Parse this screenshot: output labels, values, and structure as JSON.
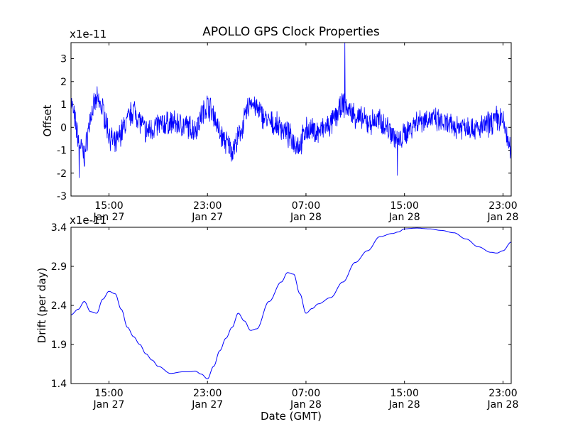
{
  "chart_data": [
    {
      "type": "line",
      "title": "APOLLO GPS Clock Properties",
      "offset_text": "x1e-11",
      "xlabel": "",
      "ylabel": "Offset",
      "ylim": [
        -3,
        3.7
      ],
      "yticks": [
        -3,
        -2,
        -1,
        0,
        1,
        2,
        3
      ],
      "ytick_labels": [
        "-3",
        "-2",
        "-1",
        "0",
        "1",
        "2",
        "3"
      ],
      "xlim": [
        "2013-01-27T11:55",
        "2013-01-28T23:40"
      ],
      "xticks": [
        {
          "time": "2013-01-27T15:00",
          "line1": "15:00",
          "line2": "Jan 27"
        },
        {
          "time": "2013-01-27T23:00",
          "line1": "23:00",
          "line2": "Jan 27"
        },
        {
          "time": "2013-01-28T07:00",
          "line1": "07:00",
          "line2": "Jan 28"
        },
        {
          "time": "2013-01-28T15:00",
          "line1": "15:00",
          "line2": "Jan 28"
        },
        {
          "time": "2013-01-28T23:00",
          "line1": "23:00",
          "line2": "Jan 28"
        }
      ],
      "grid": false,
      "line_color": "#0000ff",
      "series": [
        {
          "x": [
            "2013-01-27T11:55",
            "2013-01-27T12:30",
            "2013-01-27T13:00",
            "2013-01-27T13:30",
            "2013-01-27T14:00",
            "2013-01-27T14:30",
            "2013-01-27T15:00",
            "2013-01-27T15:30",
            "2013-01-27T16:00",
            "2013-01-27T16:30",
            "2013-01-27T17:00",
            "2013-01-27T17:30",
            "2013-01-27T18:00",
            "2013-01-27T19:00",
            "2013-01-27T20:00",
            "2013-01-27T21:00",
            "2013-01-27T22:00",
            "2013-01-27T22:30",
            "2013-01-27T23:00",
            "2013-01-27T23:30",
            "2013-01-28T00:00",
            "2013-01-28T01:00",
            "2013-01-28T01:30",
            "2013-01-28T02:00",
            "2013-01-28T02:30",
            "2013-01-28T03:00",
            "2013-01-28T04:00",
            "2013-01-28T05:00",
            "2013-01-28T06:00",
            "2013-01-28T06:30",
            "2013-01-28T07:00",
            "2013-01-28T08:00",
            "2013-01-28T09:00",
            "2013-01-28T10:00",
            "2013-01-28T11:00",
            "2013-01-28T12:00",
            "2013-01-28T13:00",
            "2013-01-28T14:00",
            "2013-01-28T14:30",
            "2013-01-28T15:00",
            "2013-01-28T16:00",
            "2013-01-28T17:00",
            "2013-01-28T18:00",
            "2013-01-28T19:00",
            "2013-01-28T20:00",
            "2013-01-28T21:00",
            "2013-01-28T22:00",
            "2013-01-28T22:30",
            "2013-01-28T23:00",
            "2013-01-28T23:40"
          ],
          "y": [
            1.2,
            -0.5,
            -1.3,
            0.5,
            1.2,
            0.8,
            -0.3,
            -0.8,
            -0.2,
            0.3,
            0.8,
            0.3,
            -0.2,
            0.1,
            0.2,
            0.1,
            -0.1,
            0.5,
            1.0,
            0.6,
            -0.3,
            -1.0,
            -0.5,
            0.3,
            1.2,
            0.8,
            0.2,
            0.0,
            -0.6,
            -0.8,
            -0.1,
            -0.2,
            0.1,
            1.0,
            0.5,
            0.2,
            0.3,
            -0.2,
            -0.7,
            -0.3,
            0.3,
            0.4,
            0.2,
            0.0,
            0.1,
            -0.1,
            0.2,
            0.4,
            0.3,
            -1.2
          ]
        }
      ],
      "spikes": [
        {
          "x": "2013-01-28T10:10",
          "y": 3.7
        },
        {
          "x": "2013-01-27T12:35",
          "y": -2.2
        },
        {
          "x": "2013-01-28T14:25",
          "y": -2.1
        }
      ]
    },
    {
      "type": "line",
      "title": "",
      "offset_text": "x1e-11",
      "xlabel": "Date (GMT)",
      "ylabel": "Drift (per day)",
      "ylim": [
        1.4,
        3.4
      ],
      "yticks": [
        1.4,
        1.9,
        2.4,
        2.9,
        3.4
      ],
      "ytick_labels": [
        "1.4",
        "1.9",
        "2.4",
        "2.9",
        "3.4"
      ],
      "xlim": [
        "2013-01-27T11:55",
        "2013-01-28T23:40"
      ],
      "xticks": [
        {
          "time": "2013-01-27T15:00",
          "line1": "15:00",
          "line2": "Jan 27"
        },
        {
          "time": "2013-01-27T23:00",
          "line1": "23:00",
          "line2": "Jan 27"
        },
        {
          "time": "2013-01-28T07:00",
          "line1": "07:00",
          "line2": "Jan 28"
        },
        {
          "time": "2013-01-28T15:00",
          "line1": "15:00",
          "line2": "Jan 28"
        },
        {
          "time": "2013-01-28T23:00",
          "line1": "23:00",
          "line2": "Jan 28"
        }
      ],
      "grid": false,
      "line_color": "#0000ff",
      "series": [
        {
          "x": [
            "2013-01-27T11:55",
            "2013-01-27T12:30",
            "2013-01-27T13:00",
            "2013-01-27T13:30",
            "2013-01-27T14:00",
            "2013-01-27T14:30",
            "2013-01-27T15:00",
            "2013-01-27T15:30",
            "2013-01-27T16:00",
            "2013-01-27T16:30",
            "2013-01-27T17:00",
            "2013-01-27T17:30",
            "2013-01-27T18:00",
            "2013-01-27T18:30",
            "2013-01-27T19:00",
            "2013-01-27T20:00",
            "2013-01-27T21:00",
            "2013-01-27T21:30",
            "2013-01-27T22:00",
            "2013-01-27T22:30",
            "2013-01-27T23:00",
            "2013-01-27T23:30",
            "2013-01-28T00:00",
            "2013-01-28T00:30",
            "2013-01-28T01:00",
            "2013-01-28T01:30",
            "2013-01-28T02:00",
            "2013-01-28T02:30",
            "2013-01-28T03:00",
            "2013-01-28T04:00",
            "2013-01-28T05:00",
            "2013-01-28T05:30",
            "2013-01-28T06:00",
            "2013-01-28T06:30",
            "2013-01-28T07:00",
            "2013-01-28T07:30",
            "2013-01-28T08:00",
            "2013-01-28T09:00",
            "2013-01-28T10:00",
            "2013-01-28T11:00",
            "2013-01-28T12:00",
            "2013-01-28T13:00",
            "2013-01-28T14:00",
            "2013-01-28T14:30",
            "2013-01-28T15:00",
            "2013-01-28T16:00",
            "2013-01-28T17:00",
            "2013-01-28T18:00",
            "2013-01-28T19:00",
            "2013-01-28T20:00",
            "2013-01-28T21:00",
            "2013-01-28T22:00",
            "2013-01-28T22:30",
            "2013-01-28T23:00",
            "2013-01-28T23:40"
          ],
          "y": [
            2.28,
            2.35,
            2.45,
            2.32,
            2.3,
            2.48,
            2.58,
            2.55,
            2.35,
            2.12,
            2.0,
            1.9,
            1.78,
            1.7,
            1.62,
            1.53,
            1.55,
            1.55,
            1.56,
            1.52,
            1.46,
            1.62,
            1.82,
            1.98,
            2.12,
            2.3,
            2.2,
            2.08,
            2.1,
            2.45,
            2.7,
            2.82,
            2.8,
            2.55,
            2.3,
            2.36,
            2.42,
            2.5,
            2.7,
            2.95,
            3.1,
            3.28,
            3.32,
            3.34,
            3.38,
            3.39,
            3.38,
            3.36,
            3.33,
            3.25,
            3.15,
            3.08,
            3.07,
            3.1,
            3.21
          ]
        }
      ]
    }
  ]
}
